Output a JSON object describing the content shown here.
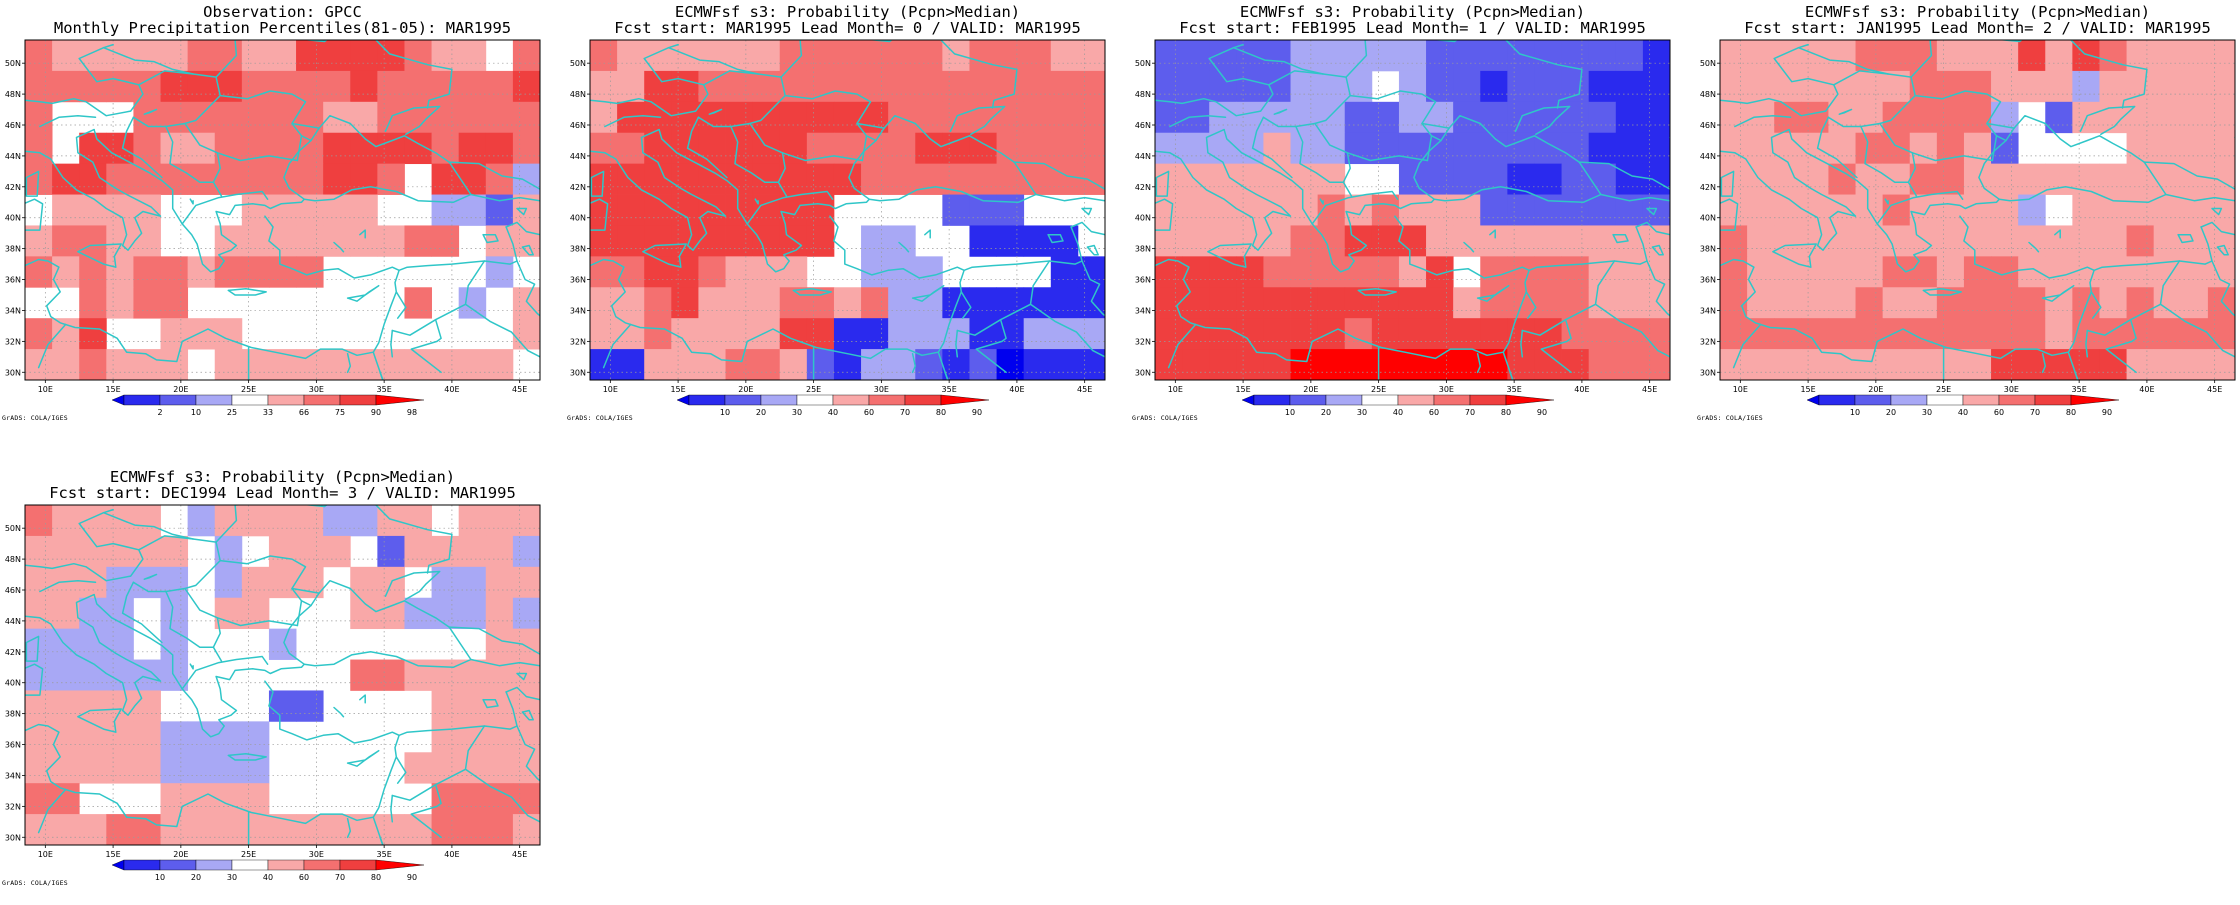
{
  "credit": "GrADS: COLA/IGES",
  "axes": {
    "x_labels": [
      "10E",
      "15E",
      "20E",
      "25E",
      "30E",
      "35E",
      "40E",
      "45E"
    ],
    "y_labels": [
      "30N",
      "32N",
      "34N",
      "36N",
      "38N",
      "40N",
      "42N",
      "44N",
      "46N",
      "48N",
      "50N"
    ],
    "lon_range": [
      8.5,
      46.5
    ],
    "lat_range": [
      29.5,
      51.5
    ],
    "grid": "dotted"
  },
  "colors": {
    "coast": "#2fc6c8",
    "scale": [
      "#0000ee",
      "#2a2aee",
      "#5d5ded",
      "#a8a8f5",
      "#ffffff",
      "#f9a8a8",
      "#f47070",
      "#ef3f3f",
      "#ff0000"
    ]
  },
  "panels": [
    {
      "title1": "Observation: GPCC",
      "title2": "Monthly Precipitation Percentiles(81-05): MAR1995",
      "colorbar_labels": [
        "2",
        "10",
        "25",
        "33",
        "66",
        "75",
        "90",
        "98"
      ],
      "grid": [
        "65555566557777655466",
        "66666777666676666672",
        "64446666666556666662",
        "64776556666777767762",
        "67766666666776477632",
        "45555444555554433255",
        "56655445555555664555",
        "65656656666444444345",
        "44656644444444643454",
        "65744555444444444455",
        "55655545555555555544"
      ]
    },
    {
      "title1": "ECMWFsf s3: Probability (Pcpn>Median)",
      "title2": "Fcst start: MAR1995  Lead Month= 0 / VALID: MAR1995",
      "colorbar_labels": [
        "10",
        "20",
        "30",
        "40",
        "60",
        "70",
        "80",
        "90"
      ],
      "grid": [
        "65555556666665666555",
        "55776666666666666665",
        "57777777777666666664",
        "66777777666677766664",
        "77777777776666666665",
        "77777777744442224444",
        "77777777743344111144",
        "66776555443334444111",
        "55675556656331111111",
        "55655557711333113331",
        "11555665213321201111"
      ]
    },
    {
      "title1": "ECMWFsf s3: Probability (Pcpn>Median)",
      "title2": "Fcst start: FEB1995  Lead Month= 1 / VALID: MAR1995",
      "colorbar_labels": [
        "10",
        "20",
        "30",
        "40",
        "60",
        "70",
        "80",
        "90"
      ],
      "grid": [
        "22222333332222222211",
        "22222333432212221111",
        "22333332233222222111",
        "33335332222222221111",
        "55555554422221122111",
        "55555565655522222222",
        "55555667775555555555",
        "77776666657466665555",
        "77777777777566665555",
        "77777776777777766666",
        "77777888888887776666"
      ]
    },
    {
      "title1": "ECMWFsf s3: Probability (Pcpn>Median)",
      "title2": "Fcst start: JAN1995  Lead Month= 2 / VALID: MAR1995",
      "colorbar_labels": [
        "10",
        "20",
        "30",
        "40",
        "60",
        "70",
        "80",
        "90"
      ],
      "grid": [
        "55555666555757655555",
        "55555556665553555555",
        "55665566663425555555",
        "55555665652444455555",
        "55556556655555555555",
        "55555565555345555555",
        "65555555555555565555",
        "65555566566555555555",
        "65555655666656565566",
        "66666666666656666666",
        "55555555557777755555"
      ]
    },
    {
      "title1": "ECMWFsf s3: Probability (Pcpn>Median)",
      "title2": "Fcst start: DEC1994  Lead Month= 3 / VALID: MAR1995",
      "colorbar_labels": [
        "10",
        "20",
        "30",
        "40",
        "60",
        "70",
        "80",
        "90"
      ],
      "grid": [
        "65555435555335545555",
        "55555543455542555533",
        "55533343555455433555",
        "55334345544455333533",
        "33334344434444444555",
        "33333344444466555555",
        "55555444422444455555",
        "55555333344444455555",
        "55555333344444555555",
        "66444555544444466666",
        "55566555555555566655"
      ]
    }
  ]
}
